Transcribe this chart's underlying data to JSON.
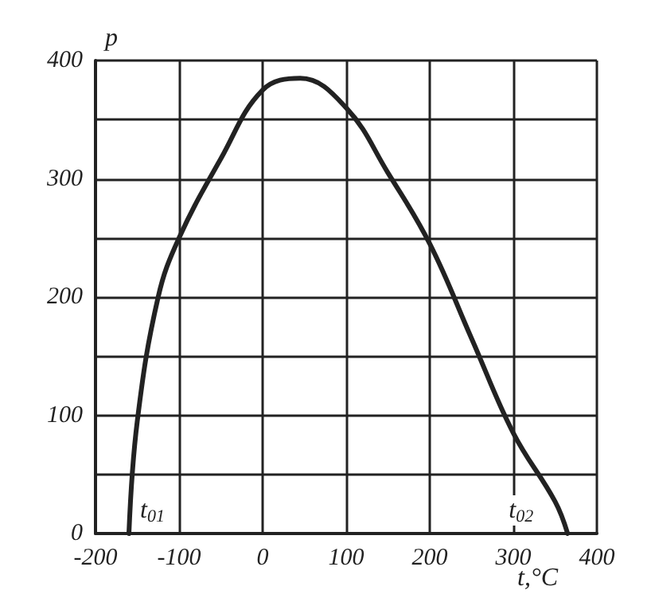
{
  "chart_data": {
    "type": "line",
    "xlabel": "t,°C",
    "ylabel": "p",
    "x": [
      -160,
      -150,
      -125,
      -100,
      -50,
      0,
      45,
      100,
      150,
      200,
      250,
      300,
      350,
      365
    ],
    "series": [
      {
        "color": "#222222",
        "values": [
          0,
          95,
          200,
          250,
          317,
          375,
          385,
          360,
          305,
          245,
          165,
          85,
          27,
          0
        ]
      }
    ],
    "xlim": [
      -200,
      400
    ],
    "xticks": [
      -200,
      -100,
      0,
      100,
      200,
      300,
      400
    ],
    "ylim": [
      0,
      400
    ],
    "yticks": [
      0,
      {
        "value": 50,
        "label": null
      },
      100,
      {
        "value": 150,
        "label": null
      },
      200,
      {
        "value": 250,
        "label": null
      },
      300,
      {
        "value": 350,
        "label": null
      },
      400
    ],
    "annotations": [
      {
        "text": "t$_{01}$",
        "x": -160,
        "y": 0
      },
      {
        "text": "t$_{02}$",
        "x": 365,
        "y": 0
      }
    ],
    "grid": true,
    "marker": "none",
    "line_style": "solid"
  }
}
